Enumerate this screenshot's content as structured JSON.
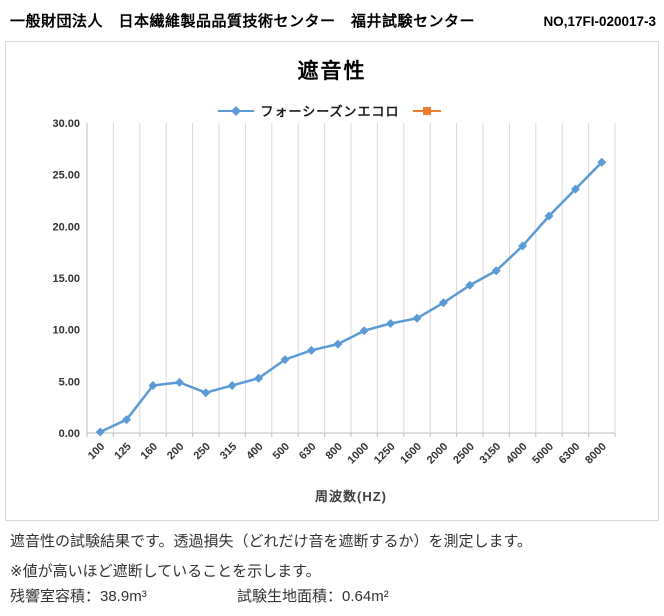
{
  "header": {
    "org": "一般財団法人　日本繊維製品品質技術センター　福井試験センター",
    "report_no": "NO,17FI-020017-3"
  },
  "chart": {
    "title": "遮音性",
    "legend": [
      {
        "label": "フォーシーズンエコロ",
        "color": "#5B9BD5",
        "marker": "diamond"
      },
      {
        "label": "",
        "color": "#ED7D31",
        "marker": "square"
      }
    ],
    "xlabel": "周波数(HZ)"
  },
  "chart_data": {
    "type": "line",
    "title": "遮音性",
    "xlabel": "周波数(HZ)",
    "ylabel": "",
    "categories": [
      "100",
      "125",
      "160",
      "200",
      "250",
      "315",
      "400",
      "500",
      "630",
      "800",
      "1000",
      "1250",
      "1600",
      "2000",
      "2500",
      "3150",
      "4000",
      "5000",
      "6300",
      "8000"
    ],
    "series": [
      {
        "name": "フォーシーズンエコロ",
        "color": "#5B9BD5",
        "marker": "diamond",
        "values": [
          0.1,
          1.3,
          4.6,
          4.9,
          3.9,
          4.6,
          5.3,
          7.1,
          8.0,
          8.6,
          9.9,
          10.6,
          11.1,
          12.6,
          14.3,
          15.7,
          18.1,
          21.0,
          23.6,
          26.2
        ]
      }
    ],
    "ylim": [
      0,
      30
    ],
    "ytick_step": 5,
    "ytick_labels": [
      "0.00",
      "5.00",
      "10.00",
      "15.00",
      "20.00",
      "25.00",
      "30.00"
    ],
    "grid": "vertical-only",
    "legend_position": "top"
  },
  "footer": {
    "line1": "遮音性の試験結果です。透過損失（どれだけ音を遮断するか）を測定します。",
    "line2": "※値が高いほど遮断していることを示します。",
    "volume_label": "残響室容積：38.9m³",
    "area_label": "試験生地面積：0.64m²"
  },
  "colors": {
    "series_blue": "#5B9BD5",
    "series_orange": "#ED7D31",
    "grid": "#D9D9D9",
    "axis": "#BFBFBF",
    "tick_text": "#333333",
    "border": "#D9D9D9"
  }
}
